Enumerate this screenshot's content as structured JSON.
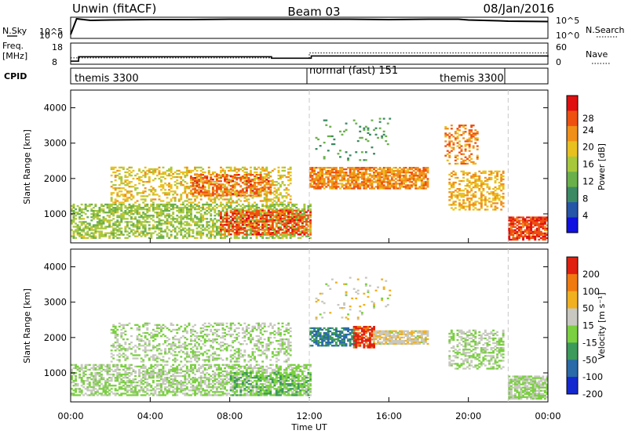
{
  "header": {
    "station": "Unwin (fitACF)",
    "beam": "Beam 03",
    "date": "08/Jan/2016"
  },
  "panels": {
    "nsky_label": "N.Sky",
    "nsky_ticks": [
      "10^5",
      "10^0"
    ],
    "nsearch_label": "N.Search",
    "nsearch_ticks": [
      "10^5",
      "10^0"
    ],
    "freq_label_1": "Freq.",
    "freq_label_2": "[MHz]",
    "freq_ticks": [
      "18",
      "8"
    ],
    "nave_label": "Nave",
    "nave_ticks": [
      "60",
      "0"
    ],
    "cpid_label": "CPID",
    "cpid_segments": [
      "themis 3300",
      "normal (fast) 151",
      "themis 3300"
    ]
  },
  "axes": {
    "ylabel": "Slant Range [km]",
    "xlabel": "Time UT",
    "x_ticks": [
      "00:00",
      "04:00",
      "08:00",
      "12:00",
      "16:00",
      "20:00",
      "00:00"
    ],
    "y_ticks": [
      "1000",
      "2000",
      "3000",
      "4000"
    ]
  },
  "colorbars": {
    "power": {
      "label": "Power [dB]",
      "ticks": [
        "4",
        "8",
        "12",
        "16",
        "20",
        "24",
        "28"
      ],
      "colors": [
        "#1010e0",
        "#2656a8",
        "#3c8a64",
        "#6ab04a",
        "#a8c83c",
        "#e8c020",
        "#f09018",
        "#ee5010",
        "#e01010"
      ]
    },
    "velocity": {
      "label": "Velocity [m s⁻¹]",
      "ticks": [
        "200",
        "100",
        "50",
        "15",
        "-15",
        "-50",
        "-100",
        "-200"
      ],
      "colors": [
        "#1428d0",
        "#2a6aa8",
        "#3c9a5a",
        "#7ad040",
        "#c8c8c0",
        "#f0b020",
        "#f07a10",
        "#e02010"
      ]
    }
  },
  "chart_data": [
    {
      "type": "line",
      "title": "N.Sky / N.Search",
      "x_unit": "hours UT",
      "series": [
        {
          "x": [
            0,
            0.3,
            1,
            2,
            4,
            6,
            8,
            10,
            12,
            14,
            16,
            18,
            19.5,
            20,
            21.5,
            22,
            24
          ],
          "y": [
            1,
            5,
            4.6,
            4.7,
            4.8,
            4.8,
            4.9,
            4.9,
            4.9,
            4.9,
            4.8,
            4.9,
            4.9,
            4.7,
            4.5,
            4.4,
            4.3
          ]
        }
      ],
      "ylim": [
        0,
        5
      ]
    },
    {
      "type": "line",
      "title": "Freq. / Nave",
      "x_unit": "hours UT",
      "series": [
        {
          "x": [
            0,
            0.4,
            10,
            10.1,
            12,
            12.1,
            22,
            24
          ],
          "y": [
            8,
            11,
            11,
            10,
            10,
            11.5,
            11.5,
            11
          ]
        },
        {
          "x": [
            0,
            10,
            12,
            24
          ],
          "y": [
            18,
            17,
            32,
            32
          ]
        }
      ]
    },
    {
      "type": "heatmap",
      "title": "Power [dB]",
      "x_range_hours": [
        0,
        24
      ],
      "y_range_km": [
        180,
        4500
      ],
      "color_range": [
        0,
        30
      ],
      "blobs": [
        {
          "t": [
            0,
            12
          ],
          "r": [
            300,
            1250
          ],
          "v": 14,
          "fill": 0.55
        },
        {
          "t": [
            2,
            11
          ],
          "r": [
            1300,
            2300
          ],
          "v": 18,
          "fill": 0.35
        },
        {
          "t": [
            6,
            10
          ],
          "r": [
            1500,
            2100
          ],
          "v": 24,
          "fill": 0.5
        },
        {
          "t": [
            7.5,
            12
          ],
          "r": [
            400,
            1100
          ],
          "v": 25,
          "fill": 0.6
        },
        {
          "t": [
            12,
            18
          ],
          "r": [
            1700,
            2300
          ],
          "v": 22,
          "fill": 0.75
        },
        {
          "t": [
            12.3,
            16
          ],
          "r": [
            2500,
            3700
          ],
          "v": 10,
          "fill": 0.06
        },
        {
          "t": [
            19,
            21.8
          ],
          "r": [
            1100,
            2200
          ],
          "v": 20,
          "fill": 0.45
        },
        {
          "t": [
            18.8,
            20.5
          ],
          "r": [
            2400,
            3500
          ],
          "v": 22,
          "fill": 0.35
        },
        {
          "t": [
            22,
            24
          ],
          "r": [
            250,
            900
          ],
          "v": 26,
          "fill": 0.8
        }
      ]
    },
    {
      "type": "heatmap",
      "title": "Velocity [m s-1]",
      "x_range_hours": [
        0,
        24
      ],
      "y_range_km": [
        180,
        4500
      ],
      "color_range": [
        -250,
        250
      ],
      "blobs": [
        {
          "t": [
            0,
            12
          ],
          "r": [
            350,
            1250
          ],
          "v": 0,
          "fill": 0.55
        },
        {
          "t": [
            2,
            11
          ],
          "r": [
            1300,
            2400
          ],
          "v": 0,
          "fill": 0.35
        },
        {
          "t": [
            8,
            12
          ],
          "r": [
            350,
            1000
          ],
          "v": -60,
          "fill": 0.4
        },
        {
          "t": [
            12,
            14.2
          ],
          "r": [
            1750,
            2250
          ],
          "v": -120,
          "fill": 0.7
        },
        {
          "t": [
            14.2,
            15.2
          ],
          "r": [
            1700,
            2300
          ],
          "v": 220,
          "fill": 0.75
        },
        {
          "t": [
            15.2,
            18
          ],
          "r": [
            1800,
            2200
          ],
          "v": 50,
          "fill": 0.8
        },
        {
          "t": [
            12.3,
            16
          ],
          "r": [
            2500,
            3700
          ],
          "v": 40,
          "fill": 0.06
        },
        {
          "t": [
            19,
            21.8
          ],
          "r": [
            1100,
            2200
          ],
          "v": 0,
          "fill": 0.45
        },
        {
          "t": [
            22,
            24
          ],
          "r": [
            250,
            900
          ],
          "v": 0,
          "fill": 0.8
        }
      ]
    }
  ]
}
